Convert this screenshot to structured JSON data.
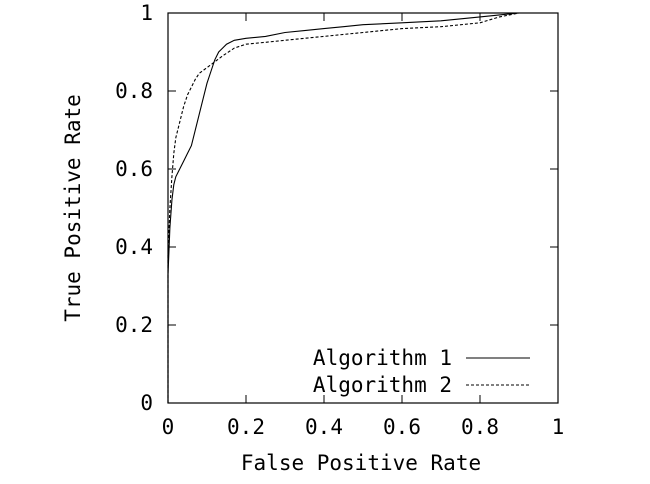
{
  "chart_data": {
    "type": "line",
    "xlabel": "False Positive Rate",
    "ylabel": "True Positive Rate",
    "xlim": [
      0,
      1
    ],
    "ylim": [
      0,
      1
    ],
    "x_ticks": [
      "0",
      "0.2",
      "0.4",
      "0.6",
      "0.8",
      "1"
    ],
    "y_ticks": [
      "0",
      "0.2",
      "0.4",
      "0.6",
      "0.8",
      "1"
    ],
    "grid": false,
    "legend_position": "bottom-right",
    "series": [
      {
        "name": "Algorithm 1",
        "line_style": "solid",
        "points": [
          [
            0.0,
            0.0
          ],
          [
            0.0,
            0.33
          ],
          [
            0.005,
            0.45
          ],
          [
            0.01,
            0.52
          ],
          [
            0.015,
            0.56
          ],
          [
            0.02,
            0.58
          ],
          [
            0.03,
            0.6
          ],
          [
            0.04,
            0.62
          ],
          [
            0.05,
            0.64
          ],
          [
            0.06,
            0.66
          ],
          [
            0.07,
            0.7
          ],
          [
            0.08,
            0.74
          ],
          [
            0.09,
            0.78
          ],
          [
            0.1,
            0.82
          ],
          [
            0.11,
            0.85
          ],
          [
            0.12,
            0.88
          ],
          [
            0.13,
            0.9
          ],
          [
            0.14,
            0.91
          ],
          [
            0.15,
            0.92
          ],
          [
            0.17,
            0.93
          ],
          [
            0.2,
            0.935
          ],
          [
            0.25,
            0.94
          ],
          [
            0.3,
            0.95
          ],
          [
            0.35,
            0.955
          ],
          [
            0.4,
            0.96
          ],
          [
            0.45,
            0.965
          ],
          [
            0.5,
            0.97
          ],
          [
            0.6,
            0.975
          ],
          [
            0.7,
            0.98
          ],
          [
            0.8,
            0.99
          ],
          [
            0.85,
            0.995
          ],
          [
            0.9,
            1.0
          ],
          [
            1.0,
            1.0
          ]
        ]
      },
      {
        "name": "Algorithm 2",
        "line_style": "dashed",
        "points": [
          [
            0.0,
            0.0
          ],
          [
            0.0,
            0.38
          ],
          [
            0.005,
            0.5
          ],
          [
            0.01,
            0.58
          ],
          [
            0.015,
            0.64
          ],
          [
            0.02,
            0.68
          ],
          [
            0.03,
            0.72
          ],
          [
            0.04,
            0.76
          ],
          [
            0.05,
            0.79
          ],
          [
            0.06,
            0.81
          ],
          [
            0.07,
            0.83
          ],
          [
            0.08,
            0.845
          ],
          [
            0.1,
            0.86
          ],
          [
            0.12,
            0.875
          ],
          [
            0.14,
            0.89
          ],
          [
            0.17,
            0.91
          ],
          [
            0.2,
            0.92
          ],
          [
            0.25,
            0.925
          ],
          [
            0.3,
            0.93
          ],
          [
            0.35,
            0.935
          ],
          [
            0.4,
            0.94
          ],
          [
            0.5,
            0.95
          ],
          [
            0.6,
            0.96
          ],
          [
            0.7,
            0.965
          ],
          [
            0.8,
            0.975
          ],
          [
            0.85,
            0.99
          ],
          [
            0.9,
            1.0
          ],
          [
            1.0,
            1.0
          ]
        ]
      }
    ]
  }
}
